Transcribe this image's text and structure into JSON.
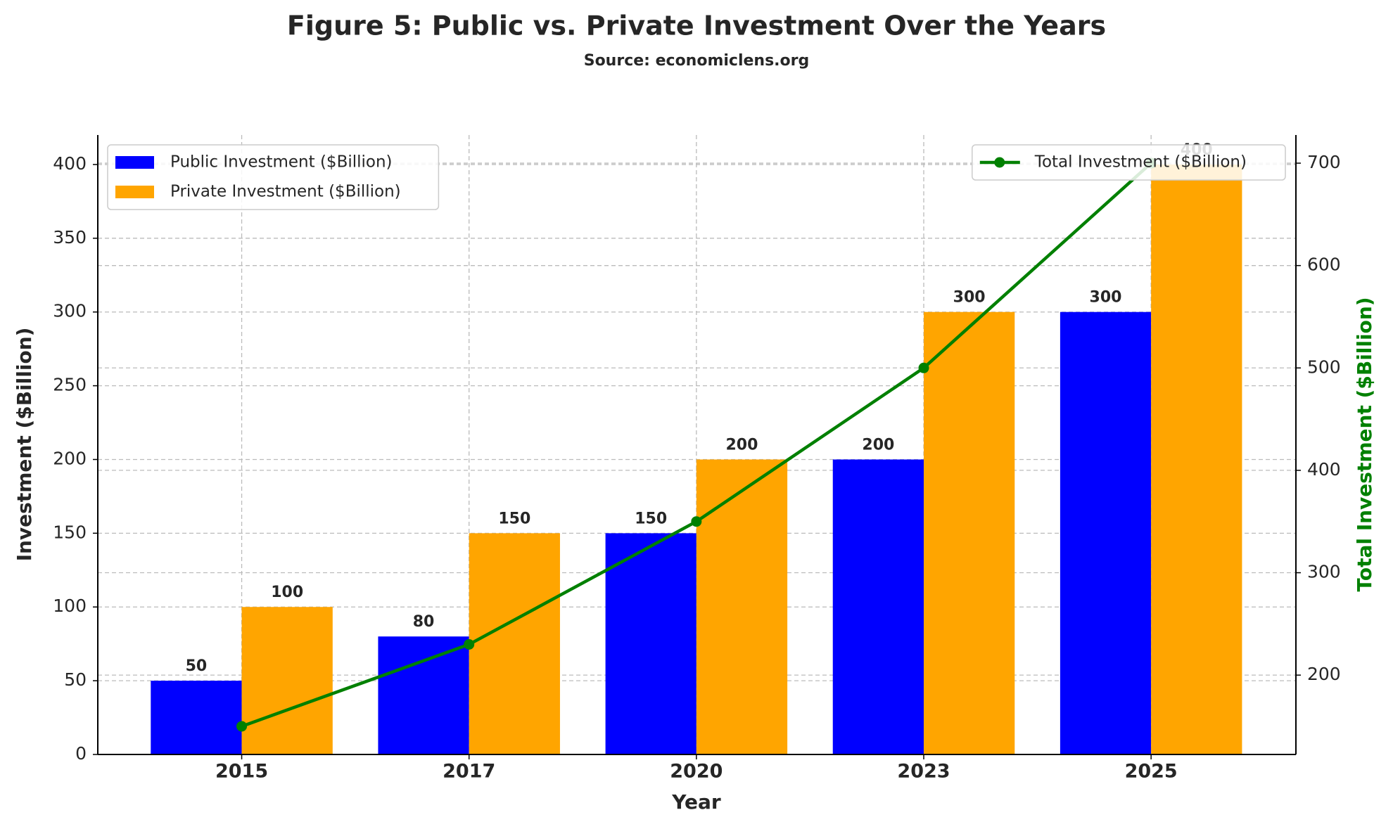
{
  "chart_data": {
    "type": "bar_line",
    "title": "Figure 5: Public vs. Private Investment Over the Years",
    "subtitle": "Source: economiclens.org",
    "x_label": "Year",
    "y_label": "Investment ($Billion)",
    "y2_label": "Total Investment ($Billion)",
    "categories": [
      "2015",
      "2017",
      "2020",
      "2023",
      "2025"
    ],
    "series": [
      {
        "name": "Public Investment ($Billion)",
        "type": "bar",
        "color": "#0000ff",
        "values": [
          50,
          80,
          150,
          200,
          300
        ]
      },
      {
        "name": "Private Investment ($Billion)",
        "type": "bar",
        "color": "#ffa500",
        "values": [
          100,
          150,
          200,
          300,
          400
        ]
      },
      {
        "name": "Total Investment ($Billion)",
        "type": "line",
        "axis": "y2",
        "color": "#008000",
        "values": [
          150,
          230,
          350,
          500,
          700
        ]
      }
    ],
    "ylim": [
      0,
      420
    ],
    "yticks": [
      0,
      50,
      100,
      150,
      200,
      250,
      300,
      350,
      400
    ],
    "y2lim": [
      122.5,
      727.5
    ],
    "y2ticks": [
      200,
      300,
      400,
      500,
      600,
      700
    ],
    "grid": true,
    "legend_loc": "upper left",
    "legend2_loc": "upper right"
  }
}
